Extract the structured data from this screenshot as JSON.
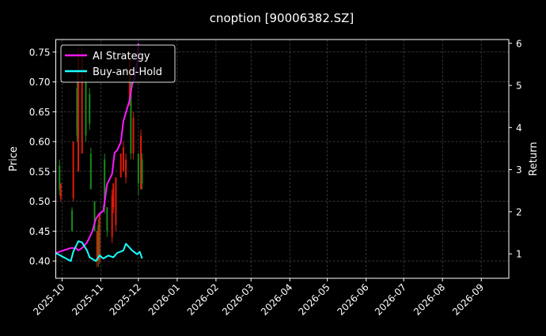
{
  "chart_data": {
    "type": "candlestick+line",
    "title": "cnoption [90006382.SZ]",
    "ylabel": "Price",
    "y2label": "Return",
    "xlim": [
      "2025-09-26",
      "2026-09-23"
    ],
    "ylim": [
      0.371,
      0.771
    ],
    "y2lim": [
      0.42,
      6.09
    ],
    "grid": true,
    "legend_position": "top-left",
    "x_ticks": [
      "2025-10",
      "2025-11",
      "2025-12",
      "2026-01",
      "2026-02",
      "2026-03",
      "2026-04",
      "2026-05",
      "2026-06",
      "2026-07",
      "2026-08",
      "2026-09"
    ],
    "y_ticks": [
      "0.40",
      "0.45",
      "0.50",
      "0.55",
      "0.60",
      "0.65",
      "0.70",
      "0.75"
    ],
    "y2_ticks": [
      "1",
      "2",
      "3",
      "4",
      "5",
      "6"
    ],
    "colors": {
      "up": "#1a8a1a",
      "down": "#e01a0a",
      "strategy": "#ff19ff",
      "buyhold": "#19ffff",
      "grid": "#555555"
    },
    "candles": [
      {
        "date": "2025-09-29",
        "open": 0.52,
        "high": 0.57,
        "low": 0.51,
        "close": 0.56
      },
      {
        "date": "2025-09-30",
        "open": 0.53,
        "high": 0.53,
        "low": 0.5,
        "close": 0.505
      },
      {
        "date": "2025-10-09",
        "open": 0.45,
        "high": 0.49,
        "low": 0.449,
        "close": 0.485
      },
      {
        "date": "2025-10-10",
        "open": 0.6,
        "high": 0.6,
        "low": 0.5,
        "close": 0.505
      },
      {
        "date": "2025-10-13",
        "open": 0.61,
        "high": 0.72,
        "low": 0.6,
        "close": 0.69
      },
      {
        "date": "2025-10-14",
        "open": 0.74,
        "high": 0.76,
        "low": 0.55,
        "close": 0.55
      },
      {
        "date": "2025-10-17",
        "open": 0.74,
        "high": 0.76,
        "low": 0.58,
        "close": 0.58
      },
      {
        "date": "2025-10-20",
        "open": 0.61,
        "high": 0.72,
        "low": 0.6,
        "close": 0.7
      },
      {
        "date": "2025-10-23",
        "open": 0.63,
        "high": 0.69,
        "low": 0.62,
        "close": 0.68
      },
      {
        "date": "2025-10-24",
        "open": 0.52,
        "high": 0.59,
        "low": 0.52,
        "close": 0.58
      },
      {
        "date": "2025-10-27",
        "open": 0.45,
        "high": 0.5,
        "low": 0.45,
        "close": 0.5
      },
      {
        "date": "2025-10-29",
        "open": 0.45,
        "high": 0.45,
        "low": 0.39,
        "close": 0.4
      },
      {
        "date": "2025-10-30",
        "open": 0.4,
        "high": 0.47,
        "low": 0.39,
        "close": 0.46
      },
      {
        "date": "2025-10-31",
        "open": 0.48,
        "high": 0.48,
        "low": 0.395,
        "close": 0.4
      },
      {
        "date": "2025-11-04",
        "open": 0.49,
        "high": 0.58,
        "low": 0.48,
        "close": 0.57
      },
      {
        "date": "2025-11-06",
        "open": 0.45,
        "high": 0.49,
        "low": 0.44,
        "close": 0.49
      },
      {
        "date": "2025-11-10",
        "open": 0.51,
        "high": 0.52,
        "low": 0.43,
        "close": 0.44
      },
      {
        "date": "2025-11-11",
        "open": 0.53,
        "high": 0.53,
        "low": 0.48,
        "close": 0.49
      },
      {
        "date": "2025-11-13",
        "open": 0.54,
        "high": 0.54,
        "low": 0.45,
        "close": 0.46
      },
      {
        "date": "2025-11-17",
        "open": 0.58,
        "high": 0.58,
        "low": 0.54,
        "close": 0.54
      },
      {
        "date": "2025-11-19",
        "open": 0.59,
        "high": 0.6,
        "low": 0.55,
        "close": 0.55
      },
      {
        "date": "2025-11-21",
        "open": 0.57,
        "high": 0.58,
        "low": 0.53,
        "close": 0.54
      },
      {
        "date": "2025-11-24",
        "open": 0.74,
        "high": 0.76,
        "low": 0.66,
        "close": 0.67
      },
      {
        "date": "2025-11-25",
        "open": 0.58,
        "high": 0.71,
        "low": 0.57,
        "close": 0.7
      },
      {
        "date": "2025-11-27",
        "open": 0.64,
        "high": 0.65,
        "low": 0.57,
        "close": 0.58
      },
      {
        "date": "2025-12-01",
        "open": 0.53,
        "high": 0.58,
        "low": 0.51,
        "close": 0.58
      },
      {
        "date": "2025-12-03",
        "open": 0.61,
        "high": 0.62,
        "low": 0.52,
        "close": 0.52
      },
      {
        "date": "2025-12-04",
        "open": 0.53,
        "high": 0.58,
        "low": 0.52,
        "close": 0.57
      }
    ],
    "series": [
      {
        "name": "AI Strategy",
        "axis": "right",
        "x": [
          "2025-09-26",
          "2025-10-08",
          "2025-10-12",
          "2025-10-14",
          "2025-10-17",
          "2025-10-21",
          "2025-10-25",
          "2025-10-28",
          "2025-10-31",
          "2025-11-03",
          "2025-11-06",
          "2025-11-10",
          "2025-11-12",
          "2025-11-14",
          "2025-11-17",
          "2025-11-19",
          "2025-11-24",
          "2025-11-26",
          "2025-11-28",
          "2025-11-30",
          "2025-12-01"
        ],
        "y": [
          1.02,
          1.14,
          1.14,
          1.08,
          1.14,
          1.27,
          1.52,
          1.83,
          1.96,
          2.02,
          2.65,
          2.9,
          3.4,
          3.46,
          3.65,
          4.15,
          4.65,
          5.03,
          5.15,
          5.53,
          6.0
        ]
      },
      {
        "name": "Buy-and-Hold",
        "axis": "right",
        "x": [
          "2025-09-26",
          "2025-10-08",
          "2025-10-10",
          "2025-10-14",
          "2025-10-17",
          "2025-10-21",
          "2025-10-23",
          "2025-10-28",
          "2025-10-31",
          "2025-11-03",
          "2025-11-07",
          "2025-11-11",
          "2025-11-14",
          "2025-11-19",
          "2025-11-21",
          "2025-11-26",
          "2025-11-30",
          "2025-12-02",
          "2025-12-04"
        ],
        "y": [
          1.02,
          0.83,
          1.05,
          1.3,
          1.27,
          1.08,
          0.92,
          0.83,
          0.96,
          0.89,
          0.96,
          0.92,
          1.02,
          1.08,
          1.24,
          1.08,
          0.99,
          1.05,
          0.89
        ]
      }
    ]
  }
}
